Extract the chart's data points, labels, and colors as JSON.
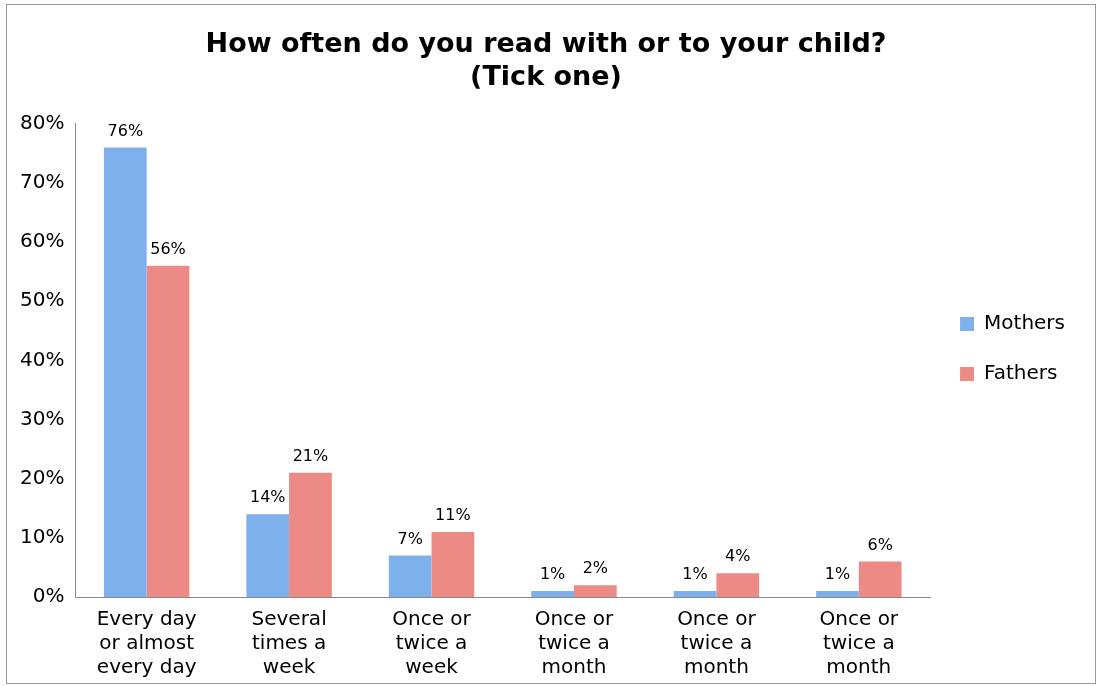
{
  "chart_data": {
    "type": "bar",
    "title": "How often do you read with or to your child?\n(Tick one)",
    "categories": [
      "Every day or almost every day",
      "Several times a week",
      "Once or twice a week",
      "Once or twice a month",
      "Once or twice a month",
      "Once or twice a month"
    ],
    "series": [
      {
        "name": "Mothers",
        "color": "#7eb0ec",
        "values": [
          76,
          14,
          7,
          1,
          1,
          1
        ],
        "value_labels": [
          "76%",
          "14%",
          "7%",
          "1%",
          "1%",
          "1%"
        ]
      },
      {
        "name": "Fathers",
        "color": "#ec8a86",
        "values": [
          56,
          21,
          11,
          2,
          4,
          6
        ],
        "value_labels": [
          "56%",
          "21%",
          "11%",
          "2%",
          "4%",
          "6%"
        ]
      }
    ],
    "ylim": [
      0,
      80
    ],
    "yticks": [
      {
        "value": 0,
        "label": "0%"
      },
      {
        "value": 10,
        "label": "10%"
      },
      {
        "value": 20,
        "label": "20%"
      },
      {
        "value": 30,
        "label": "30%"
      },
      {
        "value": 40,
        "label": "40%"
      },
      {
        "value": 50,
        "label": "50%"
      },
      {
        "value": 60,
        "label": "60%"
      },
      {
        "value": 70,
        "label": "70%"
      },
      {
        "value": 80,
        "label": "80%"
      }
    ],
    "grid": false,
    "legend": "right"
  }
}
